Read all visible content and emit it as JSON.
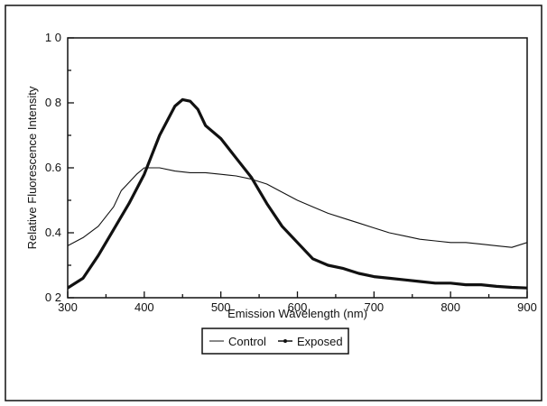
{
  "colors": {
    "ink": "#111111",
    "background": "#ffffff"
  },
  "chart_data": {
    "type": "line",
    "xlabel": "Emission Wavelength (nm)",
    "ylabel": "Relative Fluorescence Intensity",
    "xlim": [
      300,
      900
    ],
    "ylim": [
      0.2,
      1.0
    ],
    "xticks": [
      300,
      400,
      500,
      600,
      700,
      800,
      900
    ],
    "yticks": [
      0.2,
      0.4,
      0.6,
      0.8,
      1.0
    ],
    "xtick_labels": [
      "300",
      "400",
      "500",
      "600",
      "700",
      "800",
      "900"
    ],
    "ytick_labels": [
      "0 2",
      "0.4",
      "0.6",
      "0 8",
      "1 0"
    ],
    "grid": false,
    "legend_position": "bottom-center",
    "series": [
      {
        "name": "Control",
        "style": "thin",
        "x": [
          300,
          320,
          340,
          360,
          370,
          380,
          390,
          400,
          410,
          420,
          440,
          460,
          480,
          500,
          520,
          540,
          560,
          580,
          600,
          620,
          640,
          660,
          680,
          700,
          720,
          740,
          760,
          780,
          800,
          820,
          840,
          860,
          880,
          900
        ],
        "y": [
          0.36,
          0.385,
          0.42,
          0.48,
          0.53,
          0.555,
          0.58,
          0.6,
          0.6,
          0.6,
          0.59,
          0.585,
          0.585,
          0.58,
          0.575,
          0.565,
          0.55,
          0.525,
          0.5,
          0.48,
          0.46,
          0.445,
          0.43,
          0.415,
          0.4,
          0.39,
          0.38,
          0.375,
          0.37,
          0.37,
          0.365,
          0.36,
          0.355,
          0.37
        ]
      },
      {
        "name": "Exposed",
        "style": "thick",
        "x": [
          300,
          320,
          340,
          360,
          380,
          400,
          420,
          440,
          450,
          460,
          470,
          480,
          500,
          520,
          540,
          560,
          580,
          600,
          620,
          640,
          660,
          680,
          700,
          720,
          740,
          760,
          780,
          800,
          820,
          840,
          860,
          880,
          900
        ],
        "y": [
          0.23,
          0.26,
          0.33,
          0.41,
          0.49,
          0.58,
          0.7,
          0.79,
          0.81,
          0.805,
          0.78,
          0.73,
          0.69,
          0.63,
          0.57,
          0.49,
          0.42,
          0.37,
          0.32,
          0.3,
          0.29,
          0.275,
          0.265,
          0.26,
          0.255,
          0.25,
          0.245,
          0.245,
          0.24,
          0.24,
          0.235,
          0.232,
          0.23
        ]
      }
    ]
  }
}
